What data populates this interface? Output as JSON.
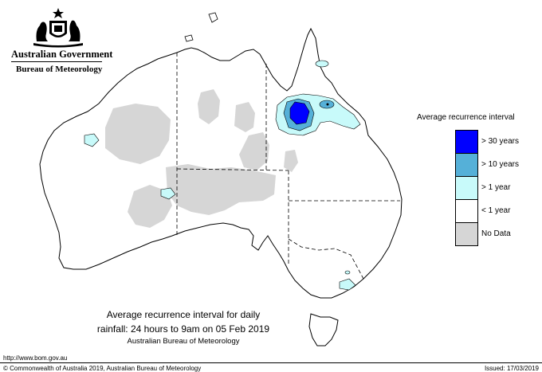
{
  "header": {
    "government": "Australian Government",
    "bureau": "Bureau of Meteorology"
  },
  "legend": {
    "title": "Average recurrence interval",
    "items": [
      {
        "label": "> 30 years",
        "color": "#0000ff"
      },
      {
        "label": "> 10 years",
        "color": "#55b0d8"
      },
      {
        "label": "> 1 year",
        "color": "#c8fafa"
      },
      {
        "label": "< 1 year",
        "color": "#ffffff"
      },
      {
        "label": "No Data",
        "color": "#d6d6d6"
      }
    ]
  },
  "caption": {
    "line1": "Average recurrence interval for daily",
    "line2": "rainfall: 24 hours to 9am on 05 Feb 2019",
    "line3": "Australian Bureau of Meteorology"
  },
  "footer": {
    "url": "http://www.bom.gov.au",
    "copyright": "© Commonwealth of Australia 2019, Australian Bureau of Meteorology",
    "issued": "Issued: 17/03/2019"
  }
}
